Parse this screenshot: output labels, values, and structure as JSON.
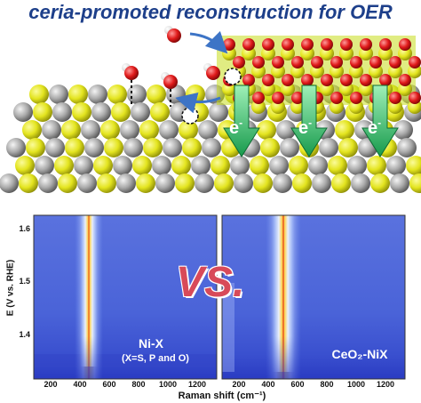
{
  "title": "ceria-promoted reconstruction for OER",
  "schematic": {
    "electron_label": "e",
    "electron_superscript": "-",
    "colors": {
      "support_yellow": "#e3e41e",
      "support_grey": "#a9a9a9",
      "ceria_oxygen": "#e01a1a",
      "water_oxygen": "#d32020",
      "arrow_green": "#1fa35a",
      "arrow_blue": "#3d74c6"
    }
  },
  "maps": {
    "y_axis_label": "E (V vs. RHE)",
    "y_ticks": [
      "1.6",
      "1.5",
      "1.4"
    ],
    "x_axis_label": "Raman shift (cm⁻¹)",
    "x_ticks": [
      "200",
      "400",
      "600",
      "800",
      "1000",
      "1200"
    ],
    "vs_text": "VS.",
    "left_panel": {
      "line1": "Ni-X",
      "line2": "(X=S, P and O)"
    },
    "right_panel": {
      "label": "CeO₂-NiX"
    }
  }
}
